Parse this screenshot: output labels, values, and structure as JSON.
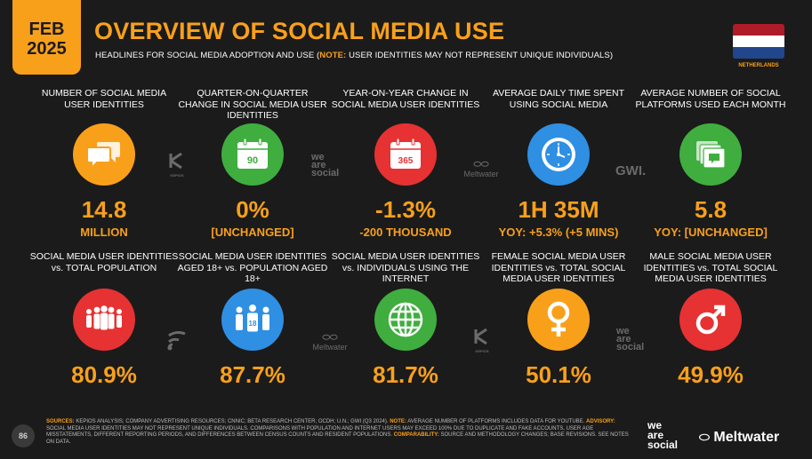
{
  "badge": {
    "month": "FEB",
    "year": "2025"
  },
  "title": "OVERVIEW OF SOCIAL MEDIA USE",
  "subtitle": {
    "lead": "HEADLINES FOR SOCIAL MEDIA ADOPTION AND USE (",
    "note": "NOTE:",
    "rest": " USER IDENTITIES MAY NOT REPRESENT UNIQUE INDIVIDUALS)"
  },
  "flag": {
    "label": "NETHERLANDS",
    "colors": [
      "#ae1c28",
      "#ffffff",
      "#21468b"
    ]
  },
  "colors": {
    "accent": "#f9a01b",
    "orange": "#f9a01b",
    "green": "#3fae3f",
    "red": "#e63232",
    "blue": "#2f8fe3"
  },
  "row1": [
    {
      "label": "NUMBER OF SOCIAL MEDIA USER IDENTITIES",
      "icon": "speech-bubbles-icon",
      "value": "14.8",
      "sub": "MILLION"
    },
    {
      "label": "QUARTER-ON-QUARTER CHANGE IN SOCIAL MEDIA USER IDENTITIES",
      "icon": "calendar-icon",
      "icon_text": "90",
      "value": "0%",
      "sub": "[UNCHANGED]"
    },
    {
      "label": "YEAR-ON-YEAR CHANGE IN SOCIAL MEDIA USER IDENTITIES",
      "icon": "calendar-icon",
      "icon_text": "365",
      "value": "-1.3%",
      "sub": "-200 THOUSAND"
    },
    {
      "label": "AVERAGE DAILY TIME SPENT USING SOCIAL MEDIA",
      "icon": "clock-icon",
      "value": "1H 35M",
      "sub": "YOY: +5.3% (+5 MINS)"
    },
    {
      "label": "AVERAGE NUMBER OF SOCIAL PLATFORMS USED EACH MONTH",
      "icon": "stacked-cards-icon",
      "value": "5.8",
      "sub": "YOY: [UNCHANGED]"
    }
  ],
  "row2": [
    {
      "label": "SOCIAL MEDIA USER IDENTITIES vs. TOTAL POPULATION",
      "icon": "people-group-icon",
      "value": "80.9%"
    },
    {
      "label": "SOCIAL MEDIA USER IDENTITIES AGED 18+ vs. POPULATION AGED 18+",
      "icon": "adults-18-icon",
      "icon_text": "18",
      "value": "87.7%"
    },
    {
      "label": "SOCIAL MEDIA USER IDENTITIES vs. INDIVIDUALS USING THE INTERNET",
      "icon": "globe-icon",
      "value": "81.7%"
    },
    {
      "label": "FEMALE SOCIAL MEDIA USER IDENTITIES vs. TOTAL SOCIAL MEDIA USER IDENTITIES",
      "icon": "female-symbol-icon",
      "value": "50.1%"
    },
    {
      "label": "MALE SOCIAL MEDIA USER IDENTITIES vs. TOTAL SOCIAL MEDIA USER IDENTITIES",
      "icon": "male-symbol-icon",
      "value": "49.9%"
    }
  ],
  "divider_logos": {
    "kepios": "KEPIOS",
    "was": [
      "we",
      "are",
      "social"
    ],
    "meltwater": "Meltwater",
    "gwi": "GWI."
  },
  "footer": {
    "sources_label": "SOURCES:",
    "sources_text": " KEPIOS ANALYSIS; COMPANY ADVERTISING RESOURCES; CNNIC; BETA RESEARCH CENTER; OCDH; U.N.; GWI (Q3 2024). ",
    "note_label": "NOTE:",
    "note_text": " AVERAGE NUMBER OF PLATFORMS INCLUDES DATA FOR YOUTUBE. ",
    "advisory_label": "ADVISORY:",
    "advisory_text": " SOCIAL MEDIA USER IDENTITIES MAY NOT REPRESENT UNIQUE INDIVIDUALS. COMPARISONS WITH POPULATION AND INTERNET USERS MAY EXCEED 100% DUE TO DUPLICATE AND FAKE ACCOUNTS, USER AGE MISSTATEMENTS, DIFFERENT REPORTING PERIODS, AND DIFFERENCES BETWEEN CENSUS COUNTS AND RESIDENT POPULATIONS. ",
    "comparability_label": "COMPARABILITY:",
    "comparability_text": " SOURCE AND METHODOLOGY CHANGES; BASE REVISIONS. SEE NOTES ON DATA."
  },
  "page_number": "86",
  "brand": {
    "was": [
      "we",
      "are",
      "social"
    ],
    "meltwater": "Meltwater"
  }
}
